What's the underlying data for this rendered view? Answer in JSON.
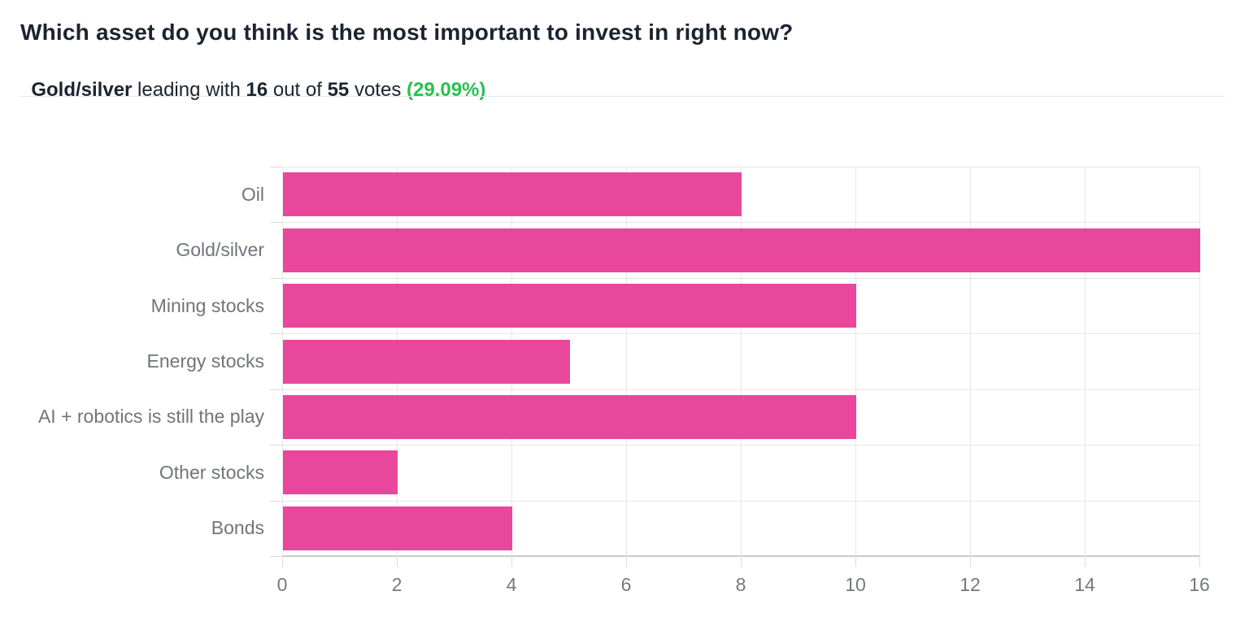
{
  "header": {
    "title": "Which asset do you think is the most important to invest in right now?",
    "subtitle": {
      "leader": "Gold/silver",
      "mid1": " leading with ",
      "leading_votes": "16",
      "mid2": " out of ",
      "total_votes": "55",
      "mid3": " votes ",
      "percent": "(29.09%)"
    }
  },
  "colors": {
    "bar": "#e8479b",
    "accent_green": "#28c150",
    "title_text": "#1b2430",
    "axis_text": "#75797e",
    "gridline": "#e7e7e8",
    "axis_line": "#c8cacc"
  },
  "chart_data": {
    "type": "bar",
    "orientation": "horizontal",
    "title": "Which asset do you think is the most important to invest in right now?",
    "subtitle": "Gold/silver leading with 16 out of 55 votes (29.09%)",
    "categories": [
      "Oil",
      "Gold/silver",
      "Mining stocks",
      "Energy stocks",
      "AI + robotics is still the play",
      "Other stocks",
      "Bonds"
    ],
    "values": [
      8,
      16,
      10,
      5,
      10,
      2,
      4
    ],
    "total_votes": 55,
    "leading_category": "Gold/silver",
    "leading_percent": 29.09,
    "xlabel": "",
    "ylabel": "",
    "xlim": [
      0,
      16
    ],
    "xticks": [
      0,
      2,
      4,
      6,
      8,
      10,
      12,
      14,
      16
    ],
    "grid": true,
    "legend": false,
    "bar_color": "#e8479b"
  }
}
